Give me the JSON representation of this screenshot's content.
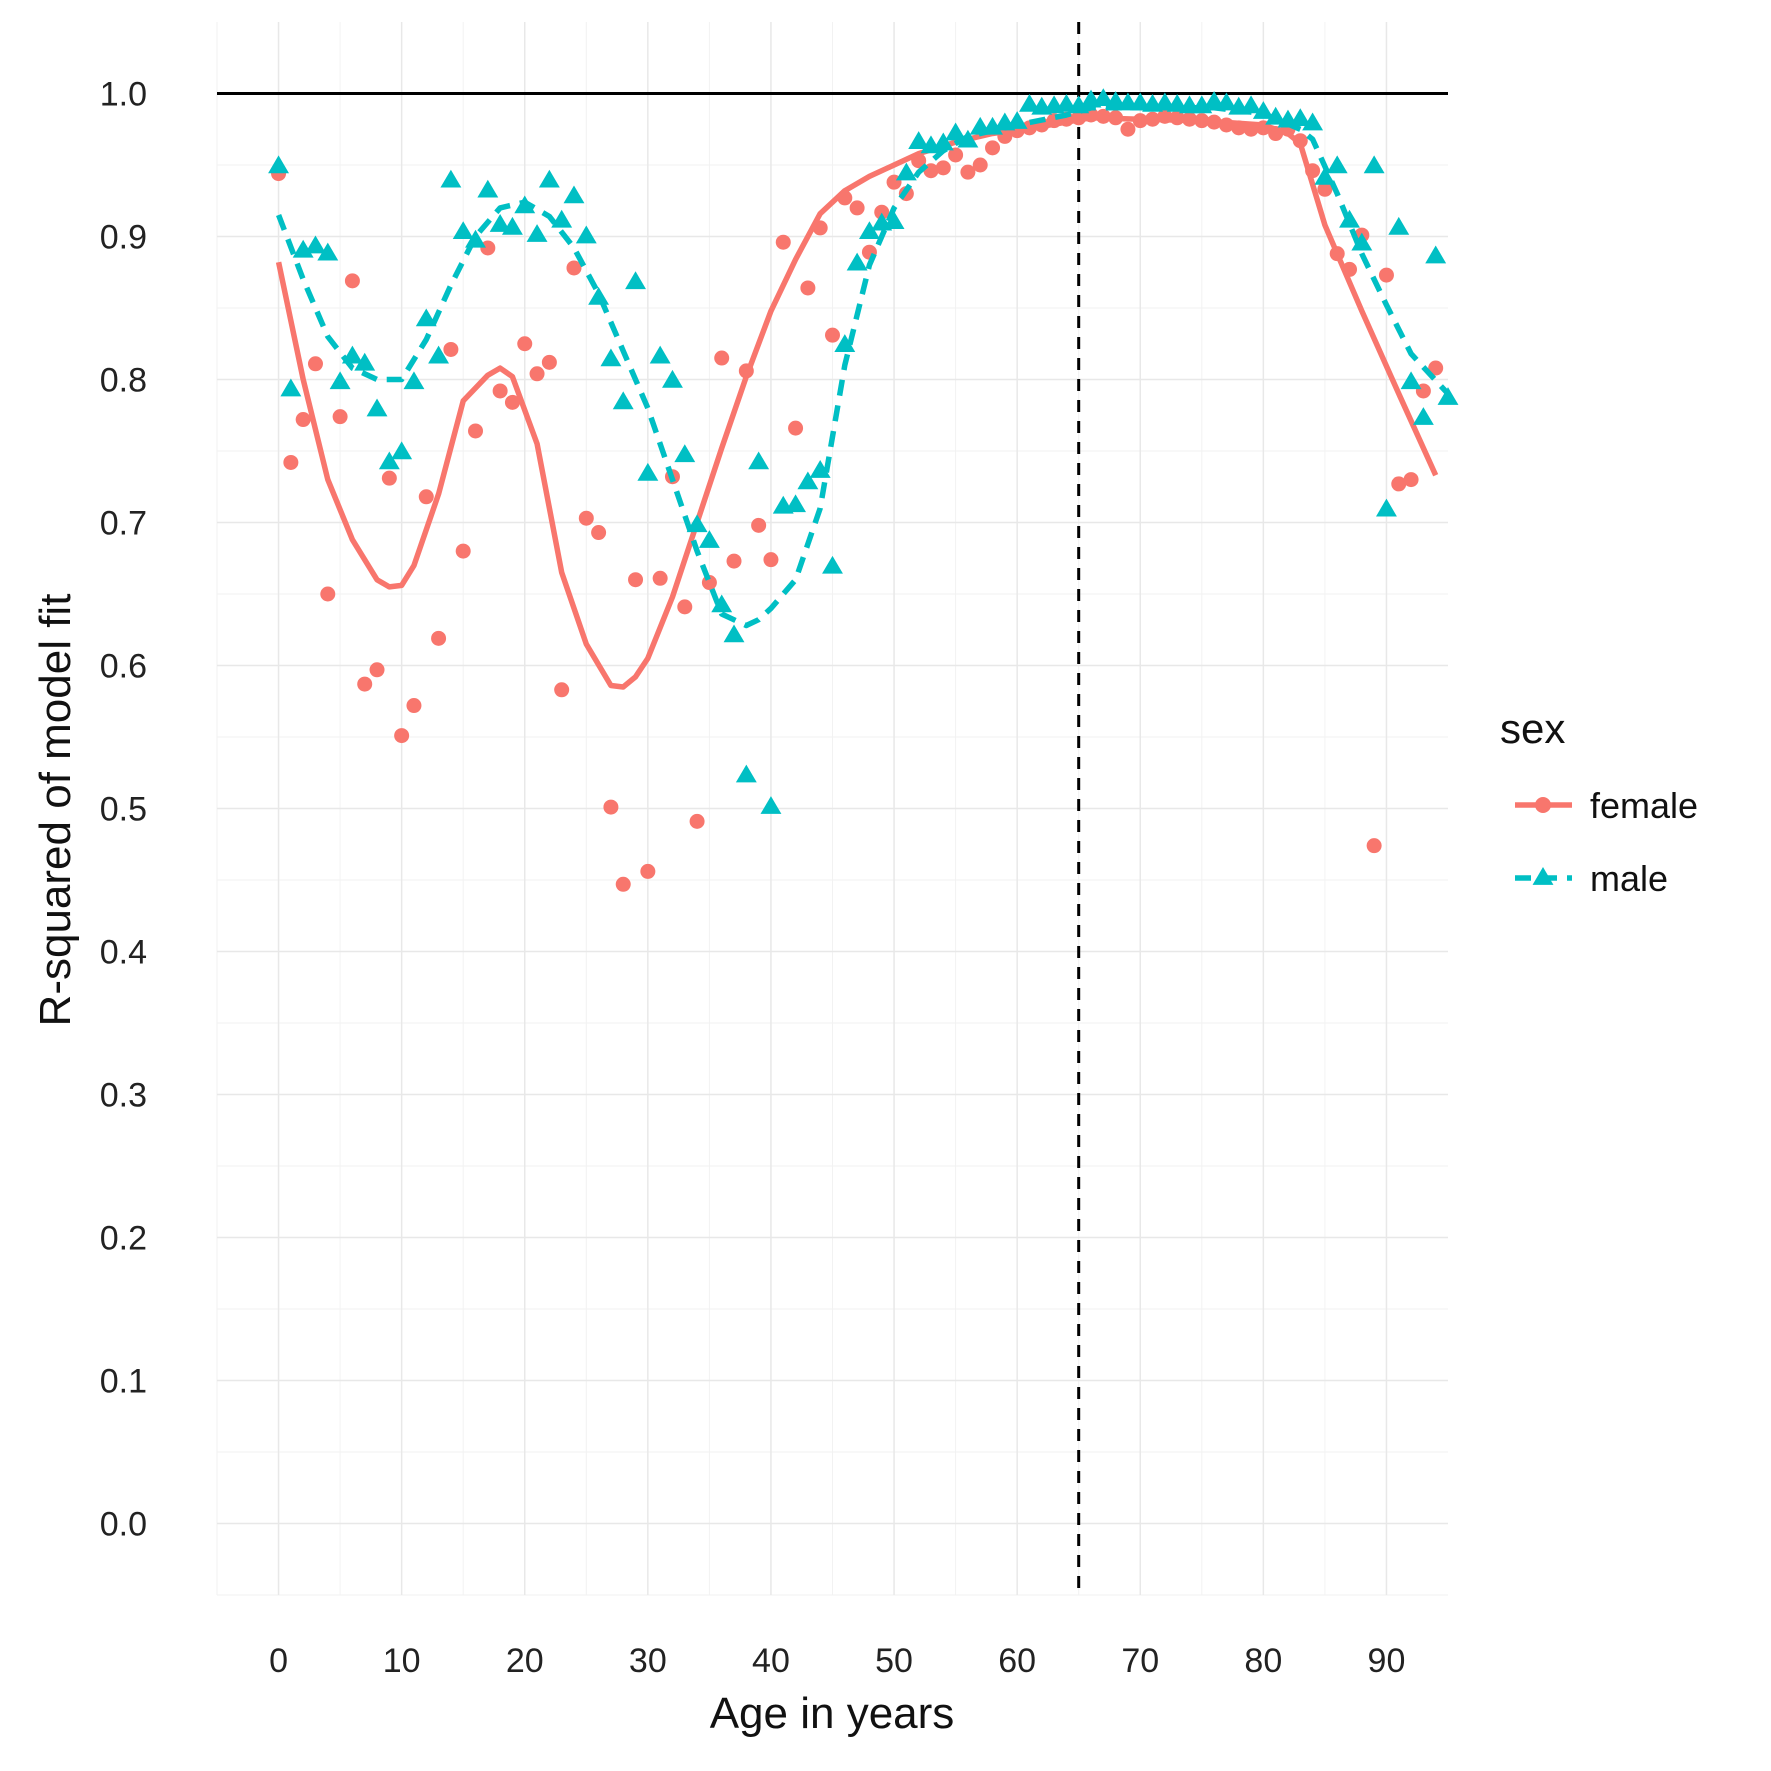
{
  "chart_data": {
    "type": "scatter",
    "title": "",
    "xlabel": "Age in years",
    "ylabel": "R-squared of model fit",
    "xlim": [
      -5,
      95
    ],
    "ylim": [
      -0.05,
      1.05
    ],
    "x_ticks": [
      0,
      10,
      20,
      30,
      40,
      50,
      60,
      70,
      80,
      90
    ],
    "y_ticks": [
      0.0,
      0.1,
      0.2,
      0.3,
      0.4,
      0.5,
      0.6,
      0.7,
      0.8,
      0.9,
      1.0
    ],
    "grid": true,
    "reference_lines": {
      "horizontal_y": 1.0,
      "vertical_dashed_x": 65
    },
    "legend": {
      "title": "sex",
      "position": "right",
      "entries": [
        "female",
        "male"
      ]
    },
    "colors": {
      "female": "#F8766D",
      "male": "#00BFC4"
    },
    "series": [
      {
        "name": "female",
        "marker": "circle",
        "line_style": "solid",
        "points": [
          [
            0,
            0.944
          ],
          [
            1,
            0.742
          ],
          [
            2,
            0.772
          ],
          [
            3,
            0.811
          ],
          [
            4,
            0.65
          ],
          [
            5,
            0.774
          ],
          [
            6,
            0.869
          ],
          [
            7,
            0.587
          ],
          [
            8,
            0.597
          ],
          [
            9,
            0.731
          ],
          [
            10,
            0.551
          ],
          [
            11,
            0.572
          ],
          [
            12,
            0.718
          ],
          [
            13,
            0.619
          ],
          [
            14,
            0.821
          ],
          [
            15,
            0.68
          ],
          [
            16,
            0.764
          ],
          [
            17,
            0.892
          ],
          [
            18,
            0.792
          ],
          [
            19,
            0.784
          ],
          [
            20,
            0.825
          ],
          [
            21,
            0.804
          ],
          [
            22,
            0.812
          ],
          [
            23,
            0.583
          ],
          [
            24,
            0.878
          ],
          [
            25,
            0.703
          ],
          [
            26,
            0.693
          ],
          [
            27,
            0.501
          ],
          [
            28,
            0.447
          ],
          [
            29,
            0.66
          ],
          [
            30,
            0.456
          ],
          [
            31,
            0.661
          ],
          [
            32,
            0.732
          ],
          [
            33,
            0.641
          ],
          [
            34,
            0.491
          ],
          [
            35,
            0.658
          ],
          [
            36,
            0.815
          ],
          [
            37,
            0.673
          ],
          [
            38,
            0.806
          ],
          [
            39,
            0.698
          ],
          [
            40,
            0.674
          ],
          [
            41,
            0.896
          ],
          [
            42,
            0.766
          ],
          [
            43,
            0.864
          ],
          [
            44,
            0.906
          ],
          [
            45,
            0.831
          ],
          [
            46,
            0.927
          ],
          [
            47,
            0.92
          ],
          [
            48,
            0.889
          ],
          [
            49,
            0.917
          ],
          [
            50,
            0.938
          ],
          [
            51,
            0.93
          ],
          [
            52,
            0.953
          ],
          [
            53,
            0.946
          ],
          [
            54,
            0.948
          ],
          [
            55,
            0.957
          ],
          [
            56,
            0.945
          ],
          [
            57,
            0.95
          ],
          [
            58,
            0.962
          ],
          [
            59,
            0.97
          ],
          [
            60,
            0.974
          ],
          [
            61,
            0.976
          ],
          [
            62,
            0.978
          ],
          [
            63,
            0.981
          ],
          [
            64,
            0.982
          ],
          [
            65,
            0.983
          ],
          [
            66,
            0.985
          ],
          [
            67,
            0.984
          ],
          [
            68,
            0.983
          ],
          [
            69,
            0.975
          ],
          [
            70,
            0.981
          ],
          [
            71,
            0.982
          ],
          [
            72,
            0.984
          ],
          [
            73,
            0.983
          ],
          [
            74,
            0.982
          ],
          [
            75,
            0.981
          ],
          [
            76,
            0.98
          ],
          [
            77,
            0.978
          ],
          [
            78,
            0.976
          ],
          [
            79,
            0.975
          ],
          [
            80,
            0.976
          ],
          [
            81,
            0.972
          ],
          [
            82,
            0.975
          ],
          [
            83,
            0.967
          ],
          [
            84,
            0.946
          ],
          [
            85,
            0.933
          ],
          [
            86,
            0.888
          ],
          [
            87,
            0.877
          ],
          [
            88,
            0.901
          ],
          [
            89,
            0.474
          ],
          [
            90,
            0.873
          ],
          [
            91,
            0.727
          ],
          [
            92,
            0.73
          ],
          [
            93,
            0.792
          ],
          [
            94,
            0.808
          ]
        ],
        "smooth": [
          [
            0,
            0.882
          ],
          [
            2,
            0.8
          ],
          [
            4,
            0.73
          ],
          [
            6,
            0.688
          ],
          [
            8,
            0.66
          ],
          [
            9,
            0.655
          ],
          [
            10,
            0.656
          ],
          [
            11,
            0.67
          ],
          [
            13,
            0.72
          ],
          [
            15,
            0.785
          ],
          [
            17,
            0.803
          ],
          [
            18,
            0.808
          ],
          [
            19,
            0.802
          ],
          [
            21,
            0.755
          ],
          [
            23,
            0.665
          ],
          [
            25,
            0.615
          ],
          [
            27,
            0.586
          ],
          [
            28,
            0.585
          ],
          [
            29,
            0.592
          ],
          [
            30,
            0.605
          ],
          [
            32,
            0.648
          ],
          [
            34,
            0.7
          ],
          [
            36,
            0.752
          ],
          [
            38,
            0.802
          ],
          [
            40,
            0.848
          ],
          [
            42,
            0.884
          ],
          [
            44,
            0.916
          ],
          [
            46,
            0.932
          ],
          [
            48,
            0.942
          ],
          [
            50,
            0.95
          ],
          [
            52,
            0.958
          ],
          [
            55,
            0.966
          ],
          [
            58,
            0.972
          ],
          [
            62,
            0.977
          ],
          [
            66,
            0.983
          ],
          [
            70,
            0.982
          ],
          [
            75,
            0.981
          ],
          [
            80,
            0.978
          ],
          [
            82,
            0.972
          ],
          [
            83,
            0.965
          ],
          [
            85,
            0.908
          ],
          [
            88,
            0.848
          ],
          [
            91,
            0.79
          ],
          [
            94,
            0.733
          ]
        ]
      },
      {
        "name": "male",
        "marker": "triangle",
        "line_style": "dashed",
        "points": [
          [
            0,
            0.949
          ],
          [
            1,
            0.793
          ],
          [
            2,
            0.89
          ],
          [
            3,
            0.893
          ],
          [
            4,
            0.888
          ],
          [
            5,
            0.798
          ],
          [
            6,
            0.816
          ],
          [
            7,
            0.811
          ],
          [
            8,
            0.779
          ],
          [
            9,
            0.742
          ],
          [
            10,
            0.749
          ],
          [
            11,
            0.798
          ],
          [
            12,
            0.842
          ],
          [
            13,
            0.816
          ],
          [
            14,
            0.939
          ],
          [
            15,
            0.903
          ],
          [
            16,
            0.897
          ],
          [
            17,
            0.932
          ],
          [
            18,
            0.908
          ],
          [
            19,
            0.906
          ],
          [
            20,
            0.921
          ],
          [
            21,
            0.901
          ],
          [
            22,
            0.939
          ],
          [
            23,
            0.911
          ],
          [
            24,
            0.928
          ],
          [
            25,
            0.9
          ],
          [
            26,
            0.857
          ],
          [
            27,
            0.814
          ],
          [
            28,
            0.784
          ],
          [
            29,
            0.868
          ],
          [
            30,
            0.734
          ],
          [
            31,
            0.816
          ],
          [
            32,
            0.799
          ],
          [
            33,
            0.747
          ],
          [
            34,
            0.698
          ],
          [
            35,
            0.687
          ],
          [
            36,
            0.642
          ],
          [
            37,
            0.621
          ],
          [
            38,
            0.523
          ],
          [
            39,
            0.742
          ],
          [
            40,
            0.501
          ],
          [
            41,
            0.711
          ],
          [
            42,
            0.712
          ],
          [
            43,
            0.728
          ],
          [
            44,
            0.736
          ],
          [
            45,
            0.669
          ],
          [
            46,
            0.824
          ],
          [
            47,
            0.881
          ],
          [
            48,
            0.903
          ],
          [
            49,
            0.909
          ],
          [
            50,
            0.91
          ],
          [
            51,
            0.944
          ],
          [
            52,
            0.966
          ],
          [
            53,
            0.963
          ],
          [
            54,
            0.965
          ],
          [
            55,
            0.972
          ],
          [
            56,
            0.967
          ],
          [
            57,
            0.976
          ],
          [
            58,
            0.976
          ],
          [
            59,
            0.979
          ],
          [
            60,
            0.98
          ],
          [
            61,
            0.992
          ],
          [
            62,
            0.99
          ],
          [
            63,
            0.991
          ],
          [
            64,
            0.992
          ],
          [
            65,
            0.991
          ],
          [
            66,
            0.995
          ],
          [
            67,
            0.996
          ],
          [
            68,
            0.994
          ],
          [
            69,
            0.993
          ],
          [
            70,
            0.993
          ],
          [
            71,
            0.992
          ],
          [
            72,
            0.993
          ],
          [
            73,
            0.992
          ],
          [
            74,
            0.991
          ],
          [
            75,
            0.991
          ],
          [
            76,
            0.994
          ],
          [
            77,
            0.993
          ],
          [
            78,
            0.99
          ],
          [
            79,
            0.991
          ],
          [
            80,
            0.987
          ],
          [
            81,
            0.983
          ],
          [
            82,
            0.981
          ],
          [
            83,
            0.982
          ],
          [
            84,
            0.979
          ],
          [
            85,
            0.941
          ],
          [
            86,
            0.949
          ],
          [
            87,
            0.911
          ],
          [
            88,
            0.895
          ],
          [
            89,
            0.949
          ],
          [
            90,
            0.709
          ],
          [
            91,
            0.906
          ],
          [
            92,
            0.798
          ],
          [
            93,
            0.773
          ],
          [
            94,
            0.886
          ],
          [
            95,
            0.787
          ]
        ],
        "smooth": [
          [
            0,
            0.915
          ],
          [
            2,
            0.87
          ],
          [
            4,
            0.83
          ],
          [
            6,
            0.808
          ],
          [
            8,
            0.8
          ],
          [
            10,
            0.8
          ],
          [
            12,
            0.828
          ],
          [
            14,
            0.866
          ],
          [
            16,
            0.9
          ],
          [
            18,
            0.92
          ],
          [
            20,
            0.924
          ],
          [
            22,
            0.914
          ],
          [
            24,
            0.892
          ],
          [
            26,
            0.86
          ],
          [
            28,
            0.82
          ],
          [
            30,
            0.78
          ],
          [
            32,
            0.73
          ],
          [
            34,
            0.68
          ],
          [
            36,
            0.636
          ],
          [
            38,
            0.628
          ],
          [
            39,
            0.632
          ],
          [
            40,
            0.64
          ],
          [
            42,
            0.66
          ],
          [
            44,
            0.71
          ],
          [
            46,
            0.81
          ],
          [
            48,
            0.88
          ],
          [
            50,
            0.92
          ],
          [
            52,
            0.945
          ],
          [
            54,
            0.96
          ],
          [
            56,
            0.97
          ],
          [
            60,
            0.978
          ],
          [
            64,
            0.985
          ],
          [
            66,
            0.99
          ],
          [
            70,
            0.99
          ],
          [
            76,
            0.99
          ],
          [
            80,
            0.986
          ],
          [
            83,
            0.975
          ],
          [
            84,
            0.968
          ],
          [
            86,
            0.93
          ],
          [
            88,
            0.888
          ],
          [
            90,
            0.852
          ],
          [
            92,
            0.818
          ],
          [
            95,
            0.79
          ]
        ]
      }
    ]
  }
}
